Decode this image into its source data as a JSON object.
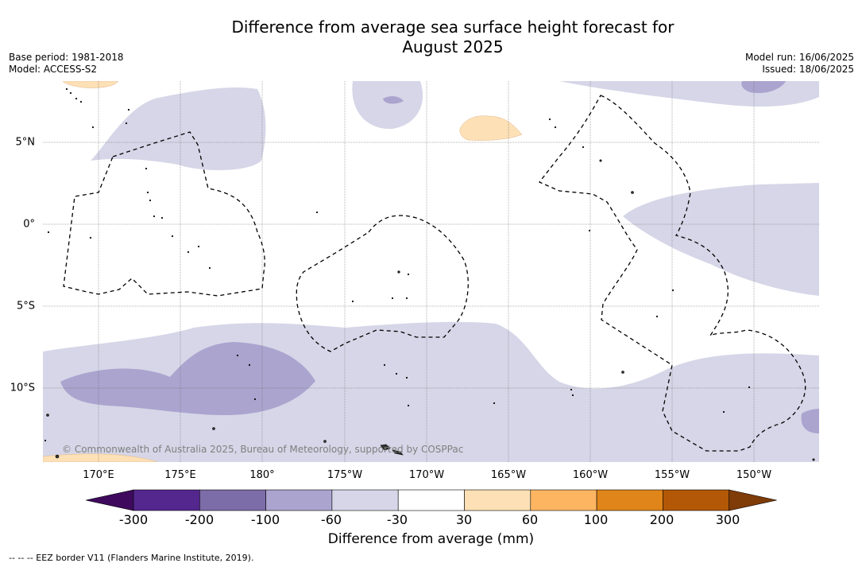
{
  "title_line1": "Difference from average sea surface height forecast for",
  "title_line2": "August 2025",
  "meta": {
    "base_period": "Base period: 1981-2018",
    "model": "Model: ACCESS-S2",
    "model_run": "Model run: 16/06/2025",
    "issued": "Issued: 18/06/2025"
  },
  "map": {
    "lon_labels": [
      "170°E",
      "175°E",
      "180°",
      "175°W",
      "170°W",
      "165°W",
      "160°W",
      "155°W",
      "150°W"
    ],
    "lat_labels": [
      "5°N",
      "0°",
      "5°S",
      "10°S"
    ],
    "copyright": "© Commonwealth of Australia 2025, Bureau of Meteorology, supported by COSPPac"
  },
  "colorbar": {
    "ticks": [
      "-300",
      "-200",
      "-100",
      "-60",
      "-30",
      "30",
      "60",
      "100",
      "200",
      "300"
    ],
    "colors": [
      "#3f0a5e",
      "#54278f",
      "#7c6ca8",
      "#aba4cf",
      "#d6d6e8",
      "#ffffff",
      "#fde0b5",
      "#fdb562",
      "#e08519",
      "#b35806",
      "#7f3b08"
    ],
    "label": "Difference from average (mm)"
  },
  "footnote": "--  --  -- EEZ border V11 (Flanders Marine Institute, 2019)."
}
